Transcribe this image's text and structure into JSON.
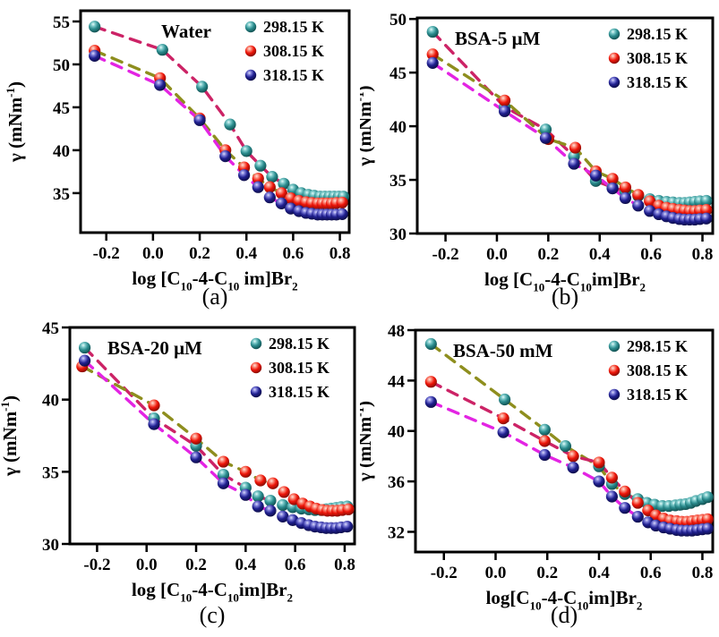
{
  "figure": {
    "background": "#ffffff",
    "palette": {
      "series": {
        "298.15 K": {
          "main": "#2a8b8d",
          "light": "#e6fbfa",
          "mid": "#7ecaca",
          "dark": "#0c4343"
        },
        "308.15 K": {
          "main": "#ee1509",
          "light": "#ffe3dc",
          "mid": "#fb8a78",
          "dark": "#6f0b02"
        },
        "318.15 K": {
          "main": "#1f1f8f",
          "light": "#dcdcfa",
          "mid": "#7c7cd8",
          "dark": "#0a0a38"
        }
      },
      "trend": {
        "crimson": "#cc2366",
        "olive": "#8e8e1e",
        "magenta": "#e324e3"
      },
      "axis": "#000000"
    },
    "legend_labels": [
      "298.15 K",
      "308.15 K",
      "318.15 K"
    ]
  },
  "chart_data": [
    {
      "id": "a",
      "type": "scatter",
      "caption": "(a)",
      "title": "Water",
      "title_align": "center",
      "xlabel_parts": [
        {
          "t": "log [C"
        },
        {
          "t": "10",
          "sub": true
        },
        {
          "t": "-4-C"
        },
        {
          "t": "10",
          "sub": true
        },
        {
          "t": " im]Br"
        },
        {
          "t": "2",
          "sub": true
        }
      ],
      "ylabel_parts": [
        {
          "t": "γ (mNm"
        },
        {
          "t": "-1",
          "sup": true
        },
        {
          "t": ")"
        }
      ],
      "xlim": [
        -0.31,
        0.84
      ],
      "ylim": [
        30.4,
        56.25
      ],
      "xtick_labels": [
        "-0.2",
        "0.0",
        "0.2",
        "0.4",
        "0.6",
        "0.8"
      ],
      "xtick_values": [
        -0.2,
        0,
        0.2,
        0.4,
        0.6,
        0.8
      ],
      "ytick_labels": [
        "35",
        "40",
        "45",
        "50",
        "55"
      ],
      "ytick_values": [
        35,
        40,
        45,
        50,
        55
      ],
      "grid": false,
      "legend_position": "top-right",
      "series": [
        {
          "name": "298.15 K",
          "trend": "crimson",
          "trend_points": 8,
          "x": [
            -0.25,
            0.04,
            0.21,
            0.33,
            0.4,
            0.46,
            0.51,
            0.56,
            0.6,
            0.635,
            0.665,
            0.69,
            0.715,
            0.735,
            0.755,
            0.775,
            0.795,
            0.815
          ],
          "y": [
            54.4,
            51.7,
            47.4,
            43.0,
            39.9,
            38.2,
            36.9,
            36.1,
            35.4,
            35.0,
            34.8,
            34.7,
            34.6,
            34.6,
            34.6,
            34.6,
            34.6,
            34.6
          ]
        },
        {
          "name": "308.15 K",
          "trend": "olive",
          "trend_points": 8,
          "x": [
            -0.25,
            0.03,
            0.2,
            0.31,
            0.39,
            0.45,
            0.5,
            0.55,
            0.59,
            0.625,
            0.655,
            0.68,
            0.705,
            0.725,
            0.745,
            0.765,
            0.785,
            0.81
          ],
          "y": [
            51.6,
            48.4,
            43.7,
            40.0,
            38.0,
            36.7,
            35.7,
            35.0,
            34.4,
            34.1,
            33.95,
            33.85,
            33.8,
            33.8,
            33.8,
            33.8,
            33.85,
            33.9
          ]
        },
        {
          "name": "318.15 K",
          "trend": "magenta",
          "trend_points": 8,
          "x": [
            -0.25,
            0.03,
            0.2,
            0.31,
            0.39,
            0.45,
            0.5,
            0.55,
            0.59,
            0.625,
            0.655,
            0.68,
            0.705,
            0.725,
            0.745,
            0.765,
            0.785,
            0.81
          ],
          "y": [
            51.0,
            47.6,
            43.5,
            39.3,
            37.1,
            35.7,
            34.5,
            33.8,
            33.2,
            32.9,
            32.7,
            32.6,
            32.5,
            32.5,
            32.5,
            32.5,
            32.5,
            32.55
          ]
        }
      ]
    },
    {
      "id": "b",
      "type": "scatter",
      "caption": "(b)",
      "title": "BSA-5 μM",
      "title_align": "left",
      "xlabel_parts": [
        {
          "t": "log [C"
        },
        {
          "t": "10",
          "sub": true
        },
        {
          "t": "-4-C"
        },
        {
          "t": "10",
          "sub": true
        },
        {
          "t": "im]Br"
        },
        {
          "t": "2",
          "sub": true
        }
      ],
      "ylabel_parts": [
        {
          "t": "γ (mNm"
        },
        {
          "t": "-1",
          "sup": true
        },
        {
          "t": ")"
        }
      ],
      "xlim": [
        -0.31,
        0.84
      ],
      "ylim": [
        30.0,
        50.1
      ],
      "xtick_labels": [
        "-0.2",
        "0.0",
        "0.2",
        "0.4",
        "0.6",
        "0.8"
      ],
      "xtick_values": [
        -0.2,
        0,
        0.2,
        0.4,
        0.6,
        0.8
      ],
      "ytick_labels": [
        "30",
        "35",
        "40",
        "45",
        "50"
      ],
      "ytick_values": [
        30,
        35,
        40,
        45,
        50
      ],
      "grid": false,
      "legend_position": "top-right",
      "series": [
        {
          "name": "298.15 K",
          "trend": "crimson",
          "trend_points": 8,
          "x": [
            -0.25,
            0.03,
            0.19,
            0.3,
            0.385,
            0.45,
            0.5,
            0.55,
            0.595,
            0.63,
            0.66,
            0.685,
            0.71,
            0.73,
            0.75,
            0.77,
            0.79,
            0.815
          ],
          "y": [
            48.8,
            41.8,
            39.7,
            37.2,
            34.9,
            34.3,
            33.9,
            33.5,
            33.2,
            33.05,
            32.95,
            32.9,
            32.85,
            32.85,
            32.9,
            32.95,
            33.0,
            33.05
          ]
        },
        {
          "name": "308.15 K",
          "trend": "olive",
          "trend_points": 8,
          "x": [
            -0.25,
            0.03,
            0.2,
            0.305,
            0.385,
            0.45,
            0.5,
            0.55,
            0.595,
            0.63,
            0.66,
            0.685,
            0.71,
            0.73,
            0.75,
            0.77,
            0.79,
            0.815
          ],
          "y": [
            46.7,
            42.4,
            38.8,
            38.0,
            35.8,
            35.1,
            34.3,
            33.6,
            33.0,
            32.6,
            32.4,
            32.3,
            32.2,
            32.15,
            32.1,
            32.1,
            32.15,
            32.2
          ]
        },
        {
          "name": "318.15 K",
          "trend": "magenta",
          "trend_points": 8,
          "x": [
            -0.25,
            0.03,
            0.19,
            0.3,
            0.385,
            0.45,
            0.5,
            0.55,
            0.595,
            0.63,
            0.66,
            0.685,
            0.71,
            0.73,
            0.75,
            0.77,
            0.79,
            0.815
          ],
          "y": [
            45.9,
            41.4,
            38.9,
            36.5,
            35.4,
            34.2,
            33.3,
            32.6,
            32.1,
            31.8,
            31.6,
            31.45,
            31.35,
            31.3,
            31.3,
            31.3,
            31.35,
            31.4
          ]
        }
      ]
    },
    {
      "id": "c",
      "type": "scatter",
      "caption": "(c)",
      "title": "BSA-20 μM",
      "title_align": "left",
      "xlabel_parts": [
        {
          "t": "log [C"
        },
        {
          "t": "10",
          "sub": true
        },
        {
          "t": "-4-C"
        },
        {
          "t": "10",
          "sub": true
        },
        {
          "t": "im]Br"
        },
        {
          "t": "2",
          "sub": true
        }
      ],
      "ylabel_parts": [
        {
          "t": "γ (mNm"
        },
        {
          "t": "-1",
          "sup": true
        },
        {
          "t": ")"
        }
      ],
      "xlim": [
        -0.31,
        0.84
      ],
      "ylim": [
        30.0,
        45.0
      ],
      "xtick_labels": [
        "-0.2",
        "0.0",
        "0.2",
        "0.4",
        "0.6",
        "0.8"
      ],
      "xtick_values": [
        -0.2,
        0,
        0.2,
        0.4,
        0.6,
        0.8
      ],
      "ytick_labels": [
        "30",
        "35",
        "40",
        "45"
      ],
      "ytick_values": [
        30,
        35,
        40,
        45
      ],
      "grid": false,
      "legend_position": "top-right",
      "series": [
        {
          "name": "298.15 K",
          "trend": "crimson",
          "trend_points": 7,
          "x": [
            -0.25,
            0.03,
            0.2,
            0.31,
            0.4,
            0.45,
            0.5,
            0.55,
            0.59,
            0.625,
            0.655,
            0.68,
            0.705,
            0.725,
            0.745,
            0.765,
            0.785,
            0.81
          ],
          "y": [
            43.6,
            38.7,
            36.8,
            34.8,
            33.9,
            33.3,
            33.0,
            32.7,
            32.55,
            32.45,
            32.4,
            32.35,
            32.35,
            32.4,
            32.45,
            32.5,
            32.55,
            32.6
          ]
        },
        {
          "name": "308.15 K",
          "trend": "olive",
          "trend_points": 7,
          "x": [
            -0.26,
            0.03,
            0.2,
            0.31,
            0.4,
            0.46,
            0.51,
            0.555,
            0.595,
            0.63,
            0.66,
            0.685,
            0.71,
            0.73,
            0.75,
            0.77,
            0.79,
            0.815
          ],
          "y": [
            42.3,
            39.6,
            37.3,
            35.7,
            35.0,
            34.4,
            34.2,
            33.6,
            33.1,
            32.8,
            32.6,
            32.45,
            32.35,
            32.3,
            32.3,
            32.3,
            32.35,
            32.4
          ]
        },
        {
          "name": "318.15 K",
          "trend": "magenta",
          "trend_points": 7,
          "x": [
            -0.25,
            0.03,
            0.2,
            0.31,
            0.4,
            0.45,
            0.5,
            0.55,
            0.59,
            0.625,
            0.655,
            0.68,
            0.705,
            0.725,
            0.745,
            0.765,
            0.785,
            0.81
          ],
          "y": [
            42.7,
            38.3,
            36.0,
            34.2,
            33.4,
            32.6,
            32.3,
            31.9,
            31.65,
            31.45,
            31.3,
            31.2,
            31.15,
            31.1,
            31.1,
            31.1,
            31.15,
            31.2
          ]
        }
      ]
    },
    {
      "id": "d",
      "type": "scatter",
      "caption": "(d)",
      "title": "BSA-50 mM",
      "title_align": "left",
      "xlabel_parts": [
        {
          "t": "log[C"
        },
        {
          "t": "10",
          "sub": true
        },
        {
          "t": "-4-C"
        },
        {
          "t": "10",
          "sub": true
        },
        {
          "t": "im]Br"
        },
        {
          "t": "2",
          "sub": true
        }
      ],
      "ylabel_parts": [
        {
          "t": "γ (mNm"
        },
        {
          "t": "-1",
          "sup": true
        },
        {
          "t": ")"
        }
      ],
      "xlim": [
        -0.31,
        0.84
      ],
      "ylim": [
        30.4,
        48.0
      ],
      "xtick_labels": [
        "-0.2",
        "0.0",
        "0.2",
        "0.4",
        "0.6",
        "0.8"
      ],
      "xtick_values": [
        -0.2,
        0,
        0.2,
        0.4,
        0.6,
        0.8
      ],
      "ytick_labels": [
        "32",
        "36",
        "40",
        "44",
        "48"
      ],
      "ytick_values": [
        32,
        36,
        40,
        44,
        48
      ],
      "grid": false,
      "legend_position": "top-right",
      "series": [
        {
          "name": "298.15 K",
          "trend": "olive",
          "trend_points": 8,
          "x": [
            -0.25,
            0.035,
            0.19,
            0.27,
            0.4,
            0.45,
            0.5,
            0.55,
            0.585,
            0.615,
            0.645,
            0.67,
            0.695,
            0.715,
            0.735,
            0.755,
            0.775,
            0.8,
            0.82
          ],
          "y": [
            46.9,
            42.5,
            40.1,
            38.8,
            37.2,
            35.8,
            35.0,
            34.6,
            34.3,
            34.15,
            34.05,
            34.05,
            34.1,
            34.15,
            34.2,
            34.3,
            34.45,
            34.6,
            34.75
          ]
        },
        {
          "name": "308.15 K",
          "trend": "crimson",
          "trend_points": 8,
          "x": [
            -0.25,
            0.03,
            0.19,
            0.3,
            0.4,
            0.45,
            0.5,
            0.55,
            0.59,
            0.62,
            0.65,
            0.675,
            0.7,
            0.72,
            0.74,
            0.76,
            0.78,
            0.8,
            0.82
          ],
          "y": [
            43.9,
            41.0,
            39.2,
            38.0,
            37.5,
            36.3,
            35.2,
            34.3,
            33.7,
            33.3,
            33.05,
            32.9,
            32.85,
            32.8,
            32.8,
            32.85,
            32.9,
            32.95,
            33.0
          ]
        },
        {
          "name": "318.15 K",
          "trend": "magenta",
          "trend_points": 8,
          "x": [
            -0.25,
            0.03,
            0.19,
            0.3,
            0.4,
            0.45,
            0.5,
            0.55,
            0.59,
            0.62,
            0.65,
            0.675,
            0.7,
            0.72,
            0.74,
            0.76,
            0.78,
            0.8,
            0.82
          ],
          "y": [
            42.3,
            39.9,
            38.1,
            37.1,
            36.0,
            34.8,
            33.9,
            33.2,
            32.75,
            32.5,
            32.35,
            32.25,
            32.15,
            32.1,
            32.1,
            32.1,
            32.15,
            32.2,
            32.25
          ]
        }
      ]
    }
  ]
}
